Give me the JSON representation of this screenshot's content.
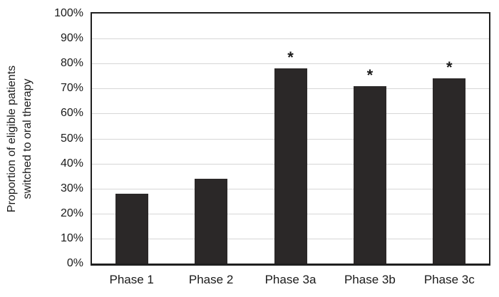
{
  "chart_data": {
    "type": "bar",
    "title": "",
    "categories": [
      "Phase 1",
      "Phase 2",
      "Phase 3a",
      "Phase 3b",
      "Phase 3c"
    ],
    "values": [
      28,
      34,
      78,
      71,
      74
    ],
    "significance_marker": "*",
    "significant": [
      false,
      false,
      true,
      true,
      true
    ],
    "xlabel": "",
    "ylabel": "Proportion of eligible patients\nswitched to oral therapy",
    "ylim": [
      0,
      100
    ],
    "ytick_labels": [
      "0%",
      "10%",
      "20%",
      "30%",
      "40%",
      "50%",
      "60%",
      "70%",
      "80%",
      "90%",
      "100%"
    ],
    "ytick_values": [
      0,
      10,
      20,
      30,
      40,
      50,
      60,
      70,
      80,
      90,
      100
    ],
    "grid": "horizontal",
    "legend_position": "none",
    "bar_color": "#2b2828",
    "gridline_color": "#d6d6d6",
    "frame_color": "#1f1f1f",
    "text_color": "#1a1a1a"
  }
}
